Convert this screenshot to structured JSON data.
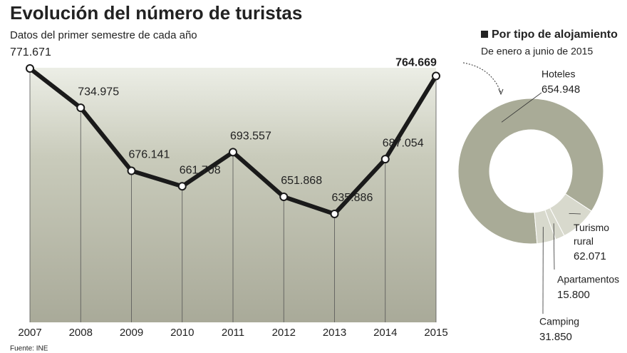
{
  "chart_data": [
    {
      "type": "line",
      "title": "Evolución del número de turistas",
      "subtitle": "Datos del primer semestre de cada año",
      "categories": [
        "2007",
        "2008",
        "2009",
        "2010",
        "2011",
        "2012",
        "2013",
        "2014",
        "2015"
      ],
      "values": [
        771671,
        734975,
        676141,
        661708,
        693557,
        651868,
        635886,
        687054,
        764669
      ],
      "value_labels": [
        "771.671",
        "734.975",
        "676.141",
        "661.708",
        "693.557",
        "651.868",
        "635.886",
        "687.054",
        "764.669"
      ],
      "color": "#1a1a1a",
      "source": "Fuente: INE"
    },
    {
      "type": "donut",
      "title": "Por tipo de alojamiento",
      "subtitle": "De enero a junio de 2015",
      "categories": [
        "Hoteles",
        "Turismo rural",
        "Apartamentos",
        "Camping"
      ],
      "values": [
        654948,
        62071,
        15800,
        31850
      ],
      "value_labels": [
        "654.948",
        "62.071",
        "15.800",
        "31.850"
      ],
      "colors": [
        "#a9ab97",
        "#d8d9cd",
        "#d8d9cd",
        "#d8d9cd"
      ]
    }
  ]
}
